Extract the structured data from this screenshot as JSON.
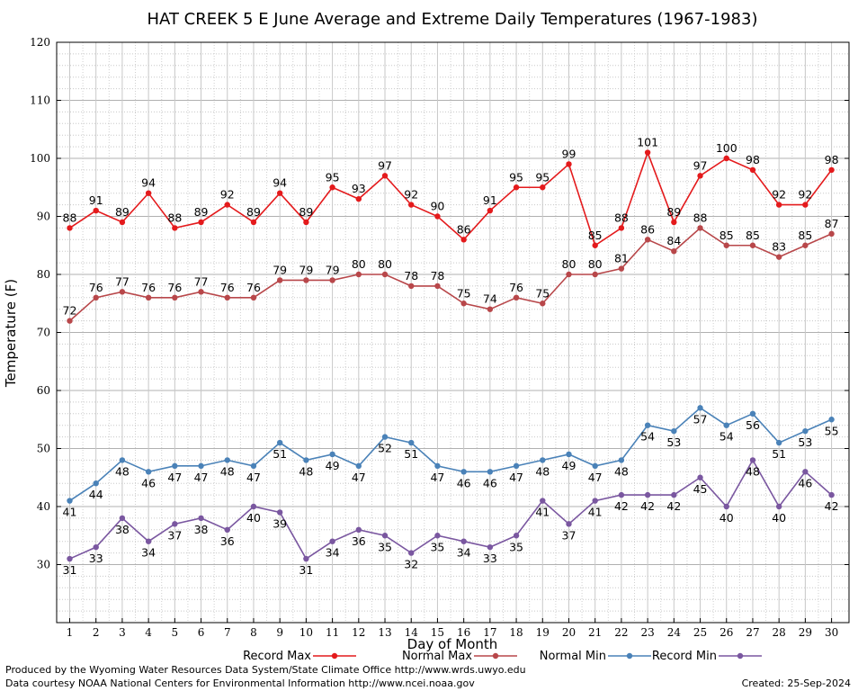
{
  "chart_data": {
    "type": "line",
    "title": "HAT CREEK 5 E June Average and Extreme Daily Temperatures (1967-1983)",
    "xlabel": "Day of Month",
    "ylabel": "Temperature (F)",
    "ylim": [
      20,
      120
    ],
    "yticks": [
      20,
      30,
      40,
      50,
      60,
      70,
      80,
      90,
      100,
      110,
      120
    ],
    "ytick_labels": [
      "",
      "30",
      "40",
      "50",
      "60",
      "70",
      "80",
      "90",
      "100",
      "110",
      "120"
    ],
    "x": [
      1,
      2,
      3,
      4,
      5,
      6,
      7,
      8,
      9,
      10,
      11,
      12,
      13,
      14,
      15,
      16,
      17,
      18,
      19,
      20,
      21,
      22,
      23,
      24,
      25,
      26,
      27,
      28,
      29,
      30
    ],
    "grid": true,
    "legend_position": "bottom",
    "series": [
      {
        "name": "Record Max",
        "color": "#e41a1c",
        "label_pos": "above",
        "values": [
          88,
          91,
          89,
          94,
          88,
          89,
          92,
          89,
          94,
          89,
          95,
          93,
          97,
          92,
          90,
          86,
          91,
          95,
          95,
          99,
          85,
          88,
          101,
          89,
          97,
          100,
          98,
          92,
          92,
          98
        ]
      },
      {
        "name": "Normal Max",
        "color": "#b8474a",
        "label_pos": "above",
        "values": [
          72,
          76,
          77,
          76,
          76,
          77,
          76,
          76,
          79,
          79,
          79,
          80,
          80,
          78,
          78,
          75,
          74,
          76,
          75,
          80,
          80,
          81,
          86,
          84,
          88,
          85,
          85,
          83,
          85,
          87
        ]
      },
      {
        "name": "Normal Min",
        "color": "#4a82b8",
        "label_pos": "below",
        "values": [
          41,
          44,
          48,
          46,
          47,
          47,
          48,
          47,
          51,
          48,
          49,
          47,
          52,
          51,
          47,
          46,
          46,
          47,
          48,
          49,
          47,
          48,
          54,
          53,
          57,
          54,
          56,
          51,
          53,
          55
        ]
      },
      {
        "name": "Record Min",
        "color": "#7a57a0",
        "label_pos": "below",
        "values": [
          31,
          33,
          38,
          34,
          37,
          38,
          36,
          40,
          39,
          31,
          34,
          36,
          35,
          32,
          35,
          34,
          33,
          35,
          41,
          37,
          41,
          42,
          42,
          42,
          45,
          40,
          48,
          40,
          46,
          42
        ]
      }
    ]
  },
  "footer": {
    "produced_by": "Produced by the Wyoming Water Resources Data System/State Climate Office http://www.wrds.uwyo.edu",
    "data_courtesy": "Data courtesy NOAA National Centers for Environmental Information http://www.ncei.noaa.gov",
    "created": "Created:  25-Sep-2024"
  }
}
